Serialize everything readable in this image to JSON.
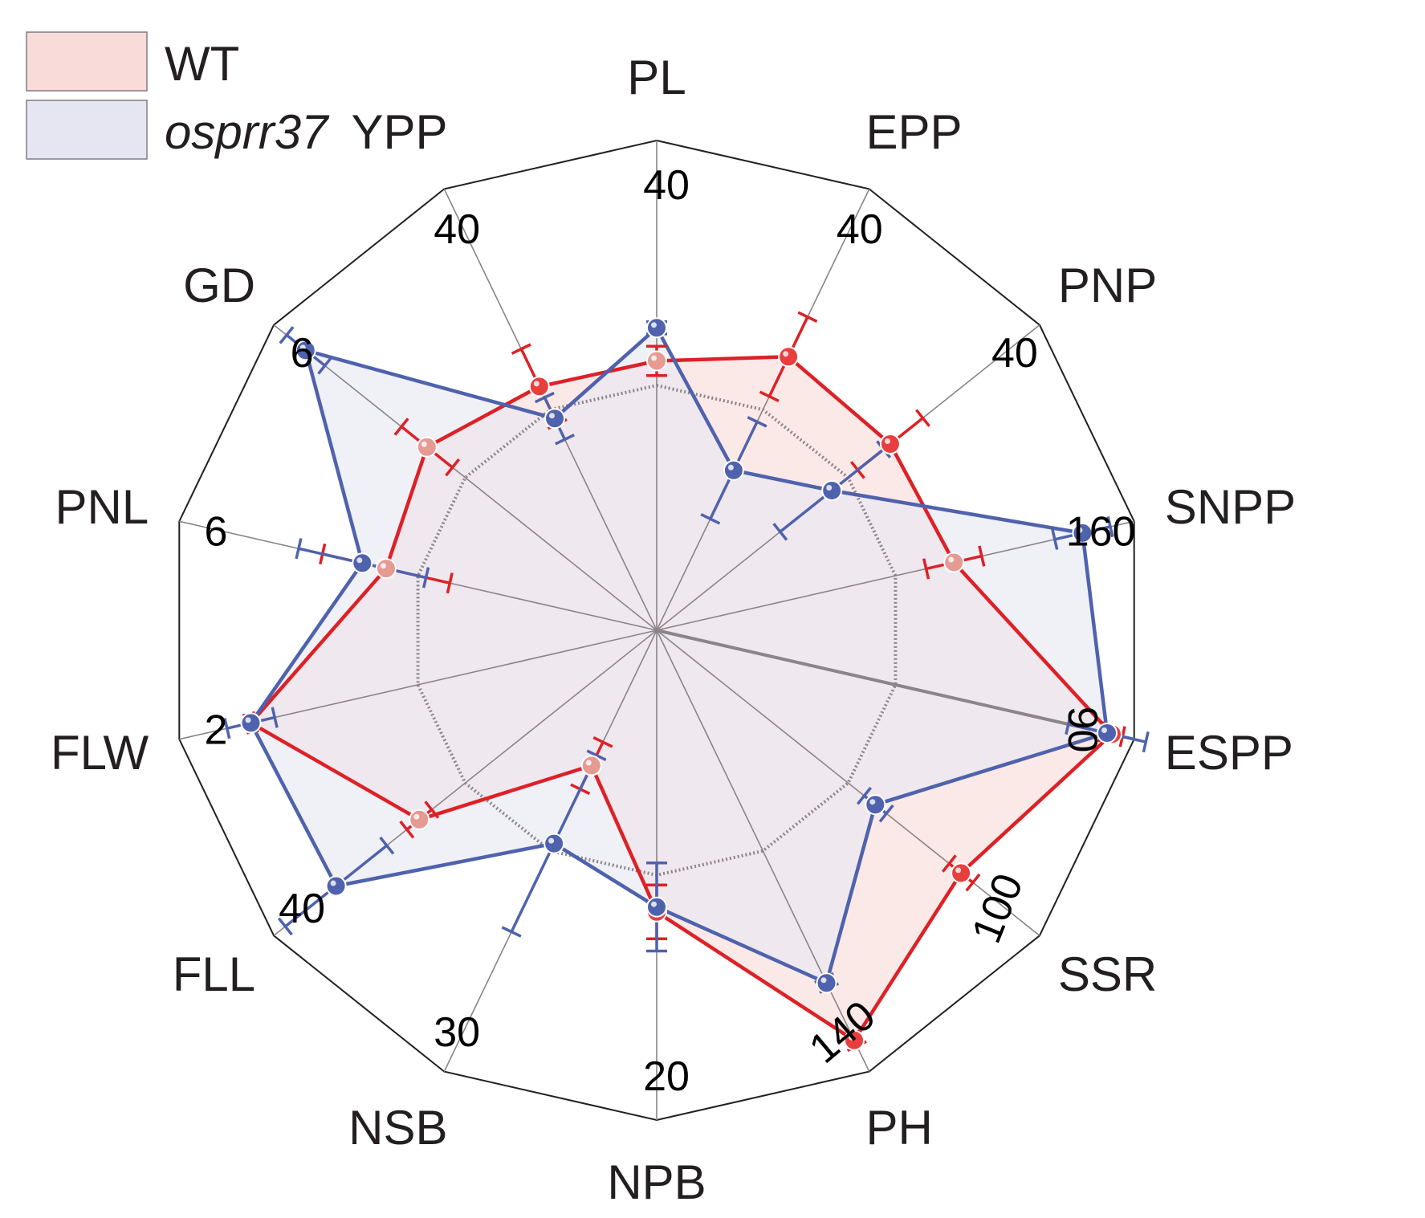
{
  "chart_data": {
    "type": "radar",
    "scale_note": "each axis normalized to its own printed maximum",
    "axes": [
      {
        "name": "PL",
        "max_label": "40"
      },
      {
        "name": "EPP",
        "max_label": "40"
      },
      {
        "name": "PNP",
        "max_label": "40"
      },
      {
        "name": "SNPP",
        "max_label": "160"
      },
      {
        "name": "ESPP",
        "max_label": "90"
      },
      {
        "name": "SSR",
        "max_label": "100"
      },
      {
        "name": "PH",
        "max_label": "140"
      },
      {
        "name": "NPB",
        "max_label": "20"
      },
      {
        "name": "NSB",
        "max_label": "30"
      },
      {
        "name": "FLL",
        "max_label": "40"
      },
      {
        "name": "FLW",
        "max_label": "2"
      },
      {
        "name": "PNL",
        "max_label": "6"
      },
      {
        "name": "GD",
        "max_label": "6"
      },
      {
        "name": "YPP",
        "max_label": "40"
      }
    ],
    "axis_max": [
      40,
      40,
      40,
      160,
      90,
      100,
      140,
      20,
      30,
      40,
      2,
      6,
      6,
      40
    ],
    "grid_inner_fraction": 0.5,
    "series": [
      {
        "name": "WT",
        "values": [
          22,
          24.8,
          24.4,
          99.6,
          85.8,
          79.5,
          130.1,
          11.5,
          9.2,
          24.8,
          1.7,
          3.4,
          3.6,
          22.1
        ],
        "errors": [
          1.2,
          3.6,
          3.4,
          9.3,
          2.0,
          3.1,
          1.8,
          1.1,
          1.6,
          1.3,
          0.02,
          0.8,
          0.4,
          3.4
        ],
        "line_color": "#dd2126",
        "fill_color": "#f9dcda"
      },
      {
        "name": "osprr37",
        "values": [
          24.7,
          14.5,
          18.3,
          142.7,
          84.9,
          57.1,
          111.9,
          11.3,
          14.5,
          33.5,
          1.7,
          3.7,
          5.5,
          19.2
        ],
        "errors": [
          0.5,
          4.4,
          5.4,
          9.3,
          7.3,
          2.9,
          1.6,
          1.8,
          6.0,
          5.3,
          0.1,
          0.8,
          0.3,
          1.9
        ],
        "line_color": "#4f62ad",
        "fill_color": "#e6e6f2"
      }
    ],
    "legend": {
      "position": "top-left",
      "entries": [
        {
          "label": "WT",
          "italic": false,
          "color": "#f9dcda",
          "border": "#7d7b86"
        },
        {
          "label": "osprr37",
          "italic": true,
          "color": "#e6e6f2",
          "border": "#7d7b86"
        }
      ]
    },
    "colors": {
      "outer_frame": "#231f20",
      "spoke": "#8b8488",
      "inner_grid": "#8b8488",
      "wt_marker": "#e83e3e",
      "wt_marker_faded": "#e59a92",
      "osprr37_marker": "#4f62ad",
      "overlap_fill": "#e2d2dd"
    }
  }
}
